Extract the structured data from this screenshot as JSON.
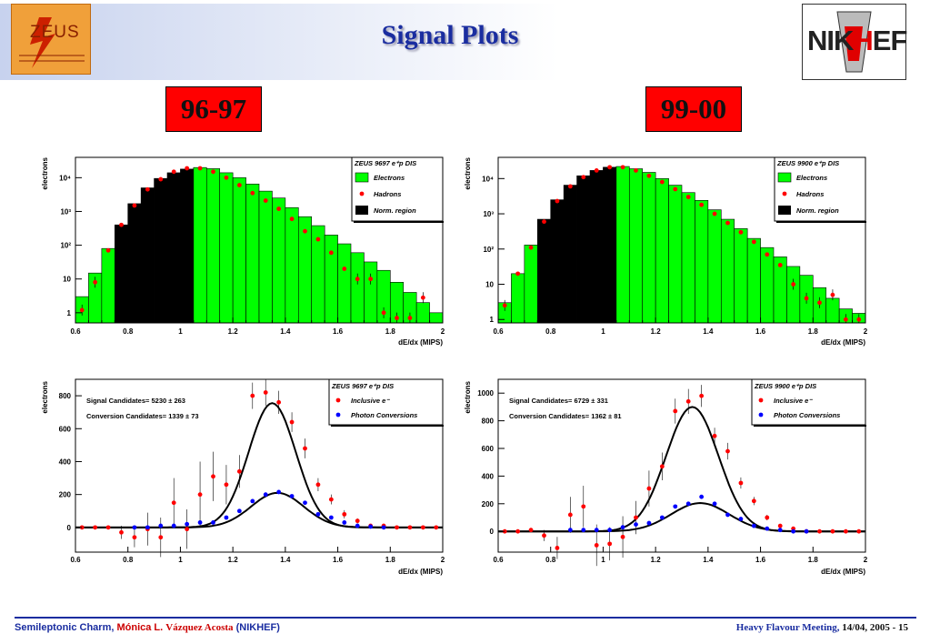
{
  "slide": {
    "title": "Signal Plots",
    "zeus_logo_text": "ZEUS",
    "nikhef_logo_text": "NIKHEF",
    "period_left": "96-97",
    "period_right": "99-00"
  },
  "footer": {
    "left_part1": "Semileptonic Charm,",
    "left_author_a": "Mónica L.",
    "left_author_b": "Vázquez Acosta",
    "left_part3": "(NIKHEF)",
    "right_conf": "Heavy Flavour Meeting,",
    "right_date": "14/04, 2005 -  15"
  },
  "colors": {
    "accent": "#1a2da0",
    "red_box": "#ff0000",
    "green_fill": "#00ff00",
    "hadron_marker": "#ff0000",
    "photon_marker": "#0000ff"
  },
  "chart_data": [
    {
      "type": "bar",
      "title": "ZEUS 9697 e⁺p DIS",
      "xlabel": "dE/dx (MIPS)",
      "ylabel": "electrons",
      "xlim": [
        0.6,
        2.0
      ],
      "ylim": [
        0.5,
        40000
      ],
      "log_y": true,
      "xticks": [
        "0.6",
        "0.8",
        "1",
        "1.2",
        "1.4",
        "1.6",
        "1.8",
        "2"
      ],
      "yticks": [
        "1",
        "10",
        "10²",
        "10³",
        "10⁴"
      ],
      "legend": [
        "Electrons",
        "Hadrons",
        "Norm. region"
      ],
      "legend_position": "top-right",
      "bin_edges": [
        0.6,
        0.65,
        0.7,
        0.75,
        0.8,
        0.85,
        0.9,
        0.95,
        1.0,
        1.05,
        1.1,
        1.15,
        1.2,
        1.25,
        1.3,
        1.35,
        1.4,
        1.45,
        1.5,
        1.55,
        1.6,
        1.65,
        1.7,
        1.75,
        1.8,
        1.85,
        1.9,
        1.95,
        2.0
      ],
      "electrons": [
        3,
        15,
        80,
        400,
        1700,
        5000,
        9500,
        14000,
        18000,
        20000,
        18500,
        14000,
        10000,
        6500,
        4000,
        2500,
        1300,
        700,
        380,
        200,
        110,
        60,
        32,
        18,
        8,
        4,
        2,
        1
      ],
      "norm_region": [
        0.75,
        1.05
      ],
      "hadron_x": [
        0.625,
        0.675,
        0.725,
        0.775,
        0.825,
        0.875,
        0.925,
        0.975,
        1.025,
        1.075,
        1.125,
        1.175,
        1.225,
        1.275,
        1.325,
        1.375,
        1.425,
        1.475,
        1.525,
        1.575,
        1.625,
        1.675,
        1.725,
        1.775,
        1.825,
        1.875,
        1.925
      ],
      "hadron_y": [
        1.2,
        8,
        70,
        400,
        1500,
        4500,
        9000,
        15000,
        19000,
        19000,
        15000,
        10000,
        6000,
        3500,
        2100,
        1200,
        600,
        260,
        150,
        60,
        20,
        10,
        10,
        1,
        0.7,
        0.7,
        2.8
      ]
    },
    {
      "type": "bar",
      "title": "ZEUS 9900 e⁺p DIS",
      "xlabel": "dE/dx (MIPS)",
      "ylabel": "electrons",
      "xlim": [
        0.6,
        2.0
      ],
      "ylim": [
        0.8,
        40000
      ],
      "log_y": true,
      "xticks": [
        "0.6",
        "0.8",
        "1",
        "1.2",
        "1.4",
        "1.6",
        "1.8",
        "2"
      ],
      "yticks": [
        "1",
        "10",
        "10²",
        "10³",
        "10⁴"
      ],
      "legend": [
        "Electrons",
        "Hadrons",
        "Norm. region"
      ],
      "legend_position": "top-right",
      "bin_edges": [
        0.6,
        0.65,
        0.7,
        0.75,
        0.8,
        0.85,
        0.9,
        0.95,
        1.0,
        1.05,
        1.1,
        1.15,
        1.2,
        1.25,
        1.3,
        1.35,
        1.4,
        1.45,
        1.5,
        1.55,
        1.6,
        1.65,
        1.7,
        1.75,
        1.8,
        1.85,
        1.9,
        1.95,
        2.0
      ],
      "electrons": [
        3,
        20,
        130,
        700,
        2500,
        6500,
        12000,
        17000,
        21000,
        22000,
        19000,
        15000,
        10000,
        6500,
        4000,
        2400,
        1300,
        700,
        380,
        200,
        110,
        60,
        32,
        18,
        8,
        4,
        2,
        1.5
      ],
      "norm_region": [
        0.75,
        1.05
      ],
      "hadron_x": [
        0.625,
        0.675,
        0.725,
        0.775,
        0.825,
        0.875,
        0.925,
        0.975,
        1.025,
        1.075,
        1.125,
        1.175,
        1.225,
        1.275,
        1.325,
        1.375,
        1.425,
        1.475,
        1.525,
        1.575,
        1.625,
        1.675,
        1.725,
        1.775,
        1.825,
        1.875,
        1.925,
        1.975
      ],
      "hadron_y": [
        2.5,
        20,
        110,
        600,
        2300,
        6000,
        11000,
        17000,
        21000,
        21000,
        17000,
        12000,
        8000,
        5000,
        3000,
        1800,
        1000,
        550,
        300,
        160,
        70,
        35,
        10,
        4,
        3,
        5,
        1,
        1
      ],
      "hadron_y_extra_note": ""
    },
    {
      "type": "scatter",
      "title": "ZEUS 9697 e⁺p DIS",
      "xlabel": "dE/dx (MIPS)",
      "ylabel": "electrons",
      "xlim": [
        0.6,
        2.0
      ],
      "ylim": [
        -150,
        900
      ],
      "xticks": [
        "0.6",
        "0.8",
        "1",
        "1.2",
        "1.4",
        "1.6",
        "1.8",
        "2"
      ],
      "yticks": [
        "0",
        "200",
        "400",
        "600",
        "800"
      ],
      "legend": [
        "Inclusive e⁻",
        "Photon Conversions"
      ],
      "legend_position": "top-right",
      "annotations": [
        "Signal Candidates=  5230 ±  263",
        "Conversion Candidates=  1339 ±   73"
      ],
      "inclusive_x": [
        0.625,
        0.675,
        0.725,
        0.775,
        0.825,
        0.875,
        0.925,
        0.975,
        1.025,
        1.075,
        1.125,
        1.175,
        1.225,
        1.275,
        1.325,
        1.375,
        1.425,
        1.475,
        1.525,
        1.575,
        1.625,
        1.675,
        1.725,
        1.775,
        1.825,
        1.875,
        1.925,
        1.975
      ],
      "inclusive_y": [
        0,
        0,
        0,
        -30,
        -60,
        -10,
        -60,
        150,
        -10,
        200,
        310,
        260,
        340,
        800,
        820,
        760,
        640,
        480,
        260,
        170,
        80,
        40,
        10,
        10,
        0,
        0,
        0,
        0
      ],
      "inclusive_err": [
        5,
        5,
        5,
        40,
        60,
        100,
        120,
        150,
        120,
        200,
        150,
        120,
        100,
        80,
        80,
        70,
        60,
        60,
        40,
        30,
        25,
        15,
        10,
        10,
        5,
        5,
        5,
        5
      ],
      "photon_x": [
        0.825,
        0.875,
        0.925,
        0.975,
        1.025,
        1.075,
        1.125,
        1.175,
        1.225,
        1.275,
        1.325,
        1.375,
        1.425,
        1.475,
        1.525,
        1.575,
        1.625,
        1.675,
        1.725,
        1.775
      ],
      "photon_y": [
        0,
        0,
        10,
        10,
        20,
        30,
        30,
        60,
        100,
        160,
        200,
        215,
        190,
        150,
        80,
        60,
        30,
        10,
        5,
        0
      ],
      "fit_total": {
        "mean": 1.35,
        "sigma": 0.09,
        "amp": 755
      },
      "fit_conv": {
        "mean": 1.37,
        "sigma": 0.1,
        "amp": 210
      }
    },
    {
      "type": "scatter",
      "title": "ZEUS 9900 e⁺p DIS",
      "xlabel": "dE/dx (MIPS)",
      "ylabel": "electrons",
      "xlim": [
        0.6,
        2.0
      ],
      "ylim": [
        -150,
        1100
      ],
      "xticks": [
        "0.6",
        "0.8",
        "1",
        "1.2",
        "1.4",
        "1.6",
        "1.8",
        "2"
      ],
      "yticks": [
        "0",
        "200",
        "400",
        "600",
        "800",
        "1000"
      ],
      "legend": [
        "Inclusive e⁻",
        "Photon Conversions"
      ],
      "legend_position": "top-right",
      "annotations": [
        "Signal Candidates=  6729 ±  331",
        "Conversion Candidates=  1362 ±   81"
      ],
      "inclusive_x": [
        0.625,
        0.675,
        0.725,
        0.775,
        0.825,
        0.875,
        0.925,
        0.975,
        1.025,
        1.075,
        1.125,
        1.175,
        1.225,
        1.275,
        1.325,
        1.375,
        1.425,
        1.475,
        1.525,
        1.575,
        1.625,
        1.675,
        1.725,
        1.775,
        1.825,
        1.875,
        1.925,
        1.975
      ],
      "inclusive_y": [
        0,
        0,
        10,
        -30,
        -120,
        120,
        180,
        -100,
        -90,
        -40,
        100,
        310,
        470,
        870,
        940,
        980,
        690,
        580,
        350,
        220,
        100,
        40,
        20,
        0,
        0,
        0,
        0,
        0
      ],
      "inclusive_err": [
        5,
        5,
        10,
        40,
        80,
        130,
        150,
        150,
        120,
        150,
        120,
        130,
        100,
        90,
        90,
        80,
        60,
        60,
        40,
        30,
        20,
        15,
        10,
        5,
        5,
        5,
        5,
        5
      ],
      "photon_x": [
        0.875,
        0.925,
        0.975,
        1.025,
        1.075,
        1.125,
        1.175,
        1.225,
        1.275,
        1.325,
        1.375,
        1.425,
        1.475,
        1.525,
        1.575,
        1.625,
        1.675,
        1.725,
        1.775
      ],
      "photon_y": [
        10,
        10,
        10,
        10,
        30,
        50,
        60,
        100,
        180,
        200,
        250,
        200,
        120,
        90,
        40,
        20,
        10,
        0,
        0
      ],
      "fit_total": {
        "mean": 1.34,
        "sigma": 0.1,
        "amp": 900
      },
      "fit_conv": {
        "mean": 1.37,
        "sigma": 0.11,
        "amp": 205
      }
    }
  ]
}
